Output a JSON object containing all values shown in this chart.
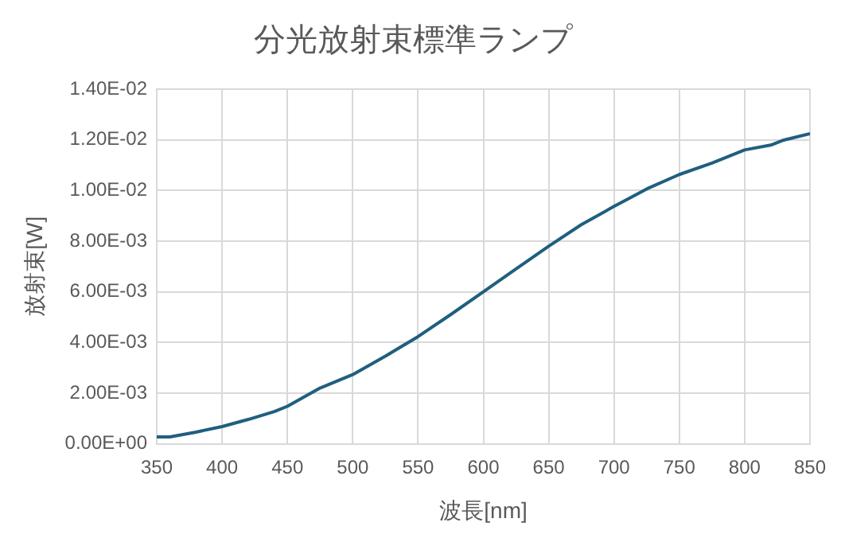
{
  "chart_data": {
    "type": "line",
    "title": "分光放射束標準ランプ",
    "xlabel": "波長[nm]",
    "ylabel": "放射束[W]",
    "x": [
      350,
      360,
      380,
      400,
      420,
      440,
      450,
      475,
      500,
      525,
      550,
      575,
      600,
      625,
      650,
      675,
      700,
      725,
      750,
      775,
      800,
      820,
      830,
      850
    ],
    "series": [
      {
        "color": "#1f5f7f",
        "values": [
          0.00027,
          0.00027,
          0.00046,
          0.00068,
          0.00096,
          0.00127,
          0.00148,
          0.0022,
          0.00273,
          0.00346,
          0.00423,
          0.0051,
          0.006,
          0.0069,
          0.0078,
          0.00865,
          0.00937,
          0.01006,
          0.01063,
          0.01108,
          0.0116,
          0.01179,
          0.01199,
          0.01224
        ]
      }
    ],
    "xlim": [
      350,
      850
    ],
    "xticks": [
      350,
      400,
      450,
      500,
      550,
      600,
      650,
      700,
      750,
      800,
      850
    ],
    "ylim": [
      0,
      0.014
    ],
    "yticks": [
      {
        "value": 0,
        "label": "0.00E+00"
      },
      {
        "value": 0.002,
        "label": "2.00E-03"
      },
      {
        "value": 0.004,
        "label": "4.00E-03"
      },
      {
        "value": 0.006,
        "label": "6.00E-03"
      },
      {
        "value": 0.008,
        "label": "8.00E-03"
      },
      {
        "value": 0.01,
        "label": "1.00E-02"
      },
      {
        "value": 0.012,
        "label": "1.20E-02"
      },
      {
        "value": 0.014,
        "label": "1.40E-02"
      }
    ],
    "grid": true,
    "legend": false,
    "marker": "none",
    "line_style": "solid"
  }
}
